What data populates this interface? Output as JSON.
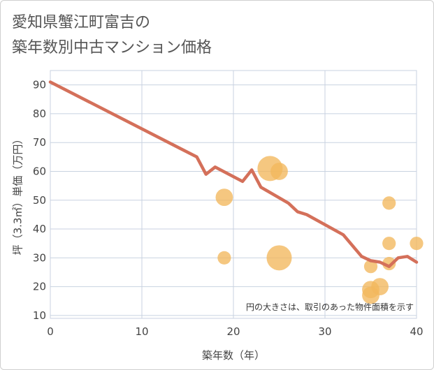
{
  "title": {
    "line1": "愛知県蟹江町富吉の",
    "line2": "築年数別中古マンション価格"
  },
  "chart_data": {
    "type": "scatter",
    "xlabel": "築年数（年）",
    "ylabel": "坪（3.3㎡）単価（万円）",
    "xlim": [
      0,
      40
    ],
    "ylim": [
      9,
      95
    ],
    "xticks": [
      0,
      10,
      20,
      30,
      40
    ],
    "yticks": [
      10,
      20,
      30,
      40,
      50,
      60,
      70,
      80,
      90
    ],
    "grid": true,
    "note": "円の大きさは、取引のあった物件面積を示す",
    "colors": {
      "line": "#d4705a",
      "bubble": "#f2b75c",
      "grid": "#c8d2e0"
    },
    "scatter": [
      {
        "x": 19,
        "y": 51,
        "size": 3
      },
      {
        "x": 19,
        "y": 30,
        "size": 2
      },
      {
        "x": 24,
        "y": 61,
        "size": 5
      },
      {
        "x": 25,
        "y": 60,
        "size": 3
      },
      {
        "x": 25,
        "y": 30,
        "size": 5
      },
      {
        "x": 35,
        "y": 27,
        "size": 2
      },
      {
        "x": 35,
        "y": 19,
        "size": 3
      },
      {
        "x": 35,
        "y": 17,
        "size": 3
      },
      {
        "x": 36,
        "y": 20,
        "size": 3
      },
      {
        "x": 37,
        "y": 49,
        "size": 2
      },
      {
        "x": 37,
        "y": 35,
        "size": 2
      },
      {
        "x": 37,
        "y": 28,
        "size": 2
      },
      {
        "x": 40,
        "y": 35,
        "size": 2
      }
    ],
    "line": {
      "x": [
        0,
        16,
        17,
        18,
        21,
        22,
        23,
        26,
        27,
        28,
        32,
        34,
        35,
        36,
        37,
        38,
        39,
        40
      ],
      "y": [
        91,
        65,
        59,
        61.5,
        56.5,
        60.5,
        54.5,
        49,
        46,
        45,
        38,
        30.5,
        29,
        28.5,
        27,
        30,
        30.5,
        28.5
      ]
    }
  }
}
